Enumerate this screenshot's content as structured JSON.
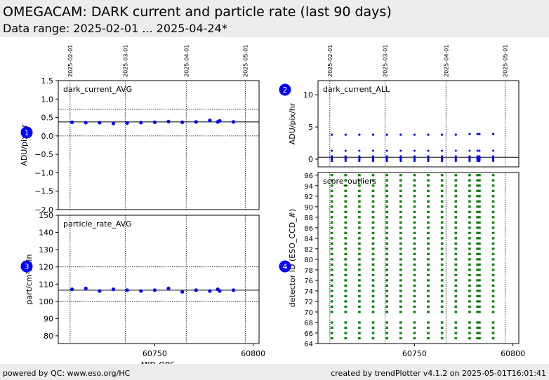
{
  "header": {
    "title": "OMEGACAM: DARK current and particle rate (last 90 days)",
    "subtitle": "Data range: 2025-02-01 ... 2025-04-24*"
  },
  "footer": {
    "left": "powered by QC: www.eso.org/HC",
    "right": "created by trendPlotter v4.1.2 on 2025-05-01T16:01:41"
  },
  "colors": {
    "avg_points": "#0000ff",
    "outlier_marks": "#008000",
    "badge": "#0000ff"
  },
  "chart_data": [
    {
      "id": 1,
      "badge": "1",
      "type": "scatter",
      "label": "dark_current_AVG",
      "ylabel": "ADU/pix/hr",
      "xlabel": "",
      "xlim": [
        60701,
        60803
      ],
      "ylim": [
        -2.0,
        1.5
      ],
      "yticks": [
        -2.0,
        -1.5,
        -1.0,
        -0.5,
        0.0,
        0.5,
        1.0,
        1.5
      ],
      "ytick_labels": [
        "−2.0",
        "−1.5",
        "−1.0",
        "−0.5",
        "0.0",
        "0.5",
        "1.0",
        "1.5"
      ],
      "xticks": [],
      "ref_line": 0.38,
      "dotted_hlines": [
        0.0,
        0.72
      ],
      "date_lines": [
        {
          "mjd": 60707,
          "label": "2025-02-01"
        },
        {
          "mjd": 60735,
          "label": "2025-03-01"
        },
        {
          "mjd": 60766,
          "label": "2025-04-01"
        },
        {
          "mjd": 60796,
          "label": "2025-05-01"
        }
      ],
      "points": [
        {
          "x": 60708,
          "y": 0.37
        },
        {
          "x": 60715,
          "y": 0.36
        },
        {
          "x": 60722,
          "y": 0.36
        },
        {
          "x": 60729,
          "y": 0.34
        },
        {
          "x": 60736,
          "y": 0.35
        },
        {
          "x": 60743,
          "y": 0.36
        },
        {
          "x": 60750,
          "y": 0.37
        },
        {
          "x": 60757,
          "y": 0.39
        },
        {
          "x": 60764,
          "y": 0.37
        },
        {
          "x": 60771,
          "y": 0.38
        },
        {
          "x": 60778,
          "y": 0.42
        },
        {
          "x": 60782,
          "y": 0.38
        },
        {
          "x": 60783,
          "y": 0.41
        },
        {
          "x": 60790,
          "y": 0.38
        }
      ]
    },
    {
      "id": 2,
      "badge": "2",
      "type": "scatter",
      "label": "dark_current_ALL",
      "ylabel": "ADU/pix/hr",
      "xlabel": "",
      "xlim": [
        60701,
        60803
      ],
      "ylim": [
        -1.2,
        12.2
      ],
      "yticks": [
        0,
        5,
        10
      ],
      "ytick_labels": [
        "0",
        "5",
        "10"
      ],
      "xticks": [],
      "ref_line": 0.3,
      "dotted_hlines": [],
      "date_lines": [
        {
          "mjd": 60707,
          "label": "2025-02-01"
        },
        {
          "mjd": 60735,
          "label": "2025-03-01"
        },
        {
          "mjd": 60766,
          "label": "2025-04-01"
        },
        {
          "mjd": 60796,
          "label": "2025-05-01"
        }
      ],
      "nights": [
        60708,
        60715,
        60722,
        60729,
        60736,
        60743,
        60750,
        60757,
        60764,
        60771,
        60778,
        60782,
        60783,
        60790
      ],
      "cluster_values": [
        -0.3,
        -0.1,
        0.0,
        0.1,
        0.2,
        0.3,
        0.45,
        1.3
      ],
      "high_values": [
        3.8,
        3.8,
        3.8,
        3.8,
        3.8,
        3.8,
        3.8,
        3.8,
        3.8,
        3.8,
        3.9,
        3.9,
        3.9,
        3.9
      ]
    },
    {
      "id": 3,
      "badge": "3",
      "type": "scatter",
      "label": "particle_rate_AVG",
      "ylabel": "part/cm²/min",
      "xlabel": "MJD-OBS",
      "xlim": [
        60701,
        60803
      ],
      "ylim": [
        75.5,
        150
      ],
      "yticks": [
        80,
        90,
        100,
        110,
        120,
        130,
        140,
        150
      ],
      "ytick_labels": [
        "80",
        "90",
        "100",
        "110",
        "120",
        "130",
        "140",
        "150"
      ],
      "xticks": [
        60750,
        60800
      ],
      "xtick_labels": [
        "60750",
        "60800"
      ],
      "ref_line": 106.5,
      "dotted_hlines": [
        100,
        120
      ],
      "date_lines": [
        {
          "mjd": 60707,
          "label": ""
        },
        {
          "mjd": 60735,
          "label": ""
        },
        {
          "mjd": 60766,
          "label": ""
        },
        {
          "mjd": 60796,
          "label": ""
        }
      ],
      "points": [
        {
          "x": 60708,
          "y": 107.0
        },
        {
          "x": 60715,
          "y": 107.5
        },
        {
          "x": 60722,
          "y": 106.0
        },
        {
          "x": 60729,
          "y": 107.0
        },
        {
          "x": 60736,
          "y": 106.5
        },
        {
          "x": 60743,
          "y": 106.0
        },
        {
          "x": 60750,
          "y": 106.5
        },
        {
          "x": 60757,
          "y": 107.5
        },
        {
          "x": 60764,
          "y": 105.5
        },
        {
          "x": 60771,
          "y": 106.5
        },
        {
          "x": 60778,
          "y": 106.0
        },
        {
          "x": 60782,
          "y": 107.0
        },
        {
          "x": 60783,
          "y": 106.0
        },
        {
          "x": 60790,
          "y": 106.5
        }
      ]
    },
    {
      "id": 4,
      "badge": "4",
      "type": "scatter",
      "label": "score_outliers",
      "ylabel": "detector ID (ESO_CCD_#)",
      "xlabel": "",
      "xlim": [
        60701,
        60803
      ],
      "ylim": [
        64,
        96.5
      ],
      "yticks": [
        64,
        66,
        68,
        70,
        72,
        74,
        76,
        78,
        80,
        82,
        84,
        86,
        88,
        90,
        92,
        94,
        96
      ],
      "ytick_labels": [
        "64",
        "66",
        "68",
        "70",
        "72",
        "74",
        "76",
        "78",
        "80",
        "82",
        "84",
        "86",
        "88",
        "90",
        "92",
        "94",
        "96"
      ],
      "xticks": [
        60750,
        60800
      ],
      "xtick_labels": [
        "60750",
        "60800"
      ],
      "date_lines": [
        {
          "mjd": 60707,
          "label": ""
        },
        {
          "mjd": 60735,
          "label": ""
        },
        {
          "mjd": 60766,
          "label": ""
        },
        {
          "mjd": 60796,
          "label": ""
        }
      ],
      "nights": [
        60708,
        60715,
        60722,
        60729,
        60736,
        60743,
        60750,
        60757,
        60764,
        60771,
        60778,
        60782,
        60783,
        60790
      ],
      "detectors": [
        65,
        66,
        67,
        68,
        70,
        71,
        72,
        73,
        74,
        75,
        76,
        77,
        78,
        79,
        80,
        81,
        82,
        83,
        84,
        85,
        86,
        87,
        88,
        89,
        90,
        91,
        92,
        93,
        94,
        95,
        96
      ]
    }
  ]
}
